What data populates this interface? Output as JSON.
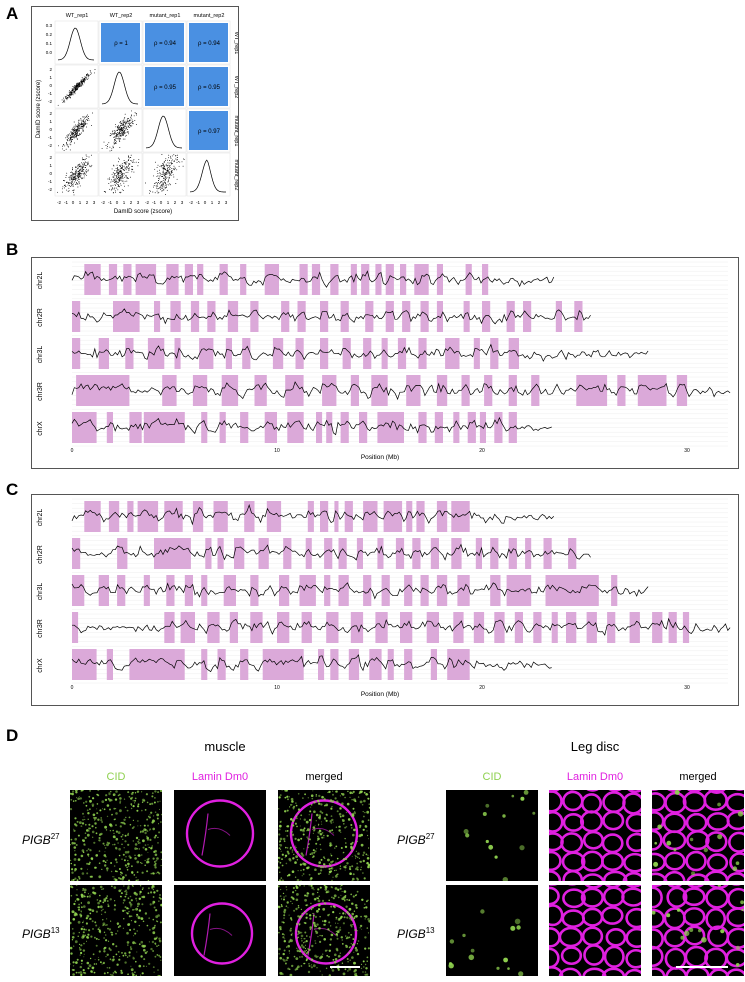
{
  "panels": {
    "A": "A",
    "B": "B",
    "C": "C",
    "D": "D"
  },
  "panelA": {
    "columns": [
      "WT_rep1",
      "WT_rep2",
      "mutant_rep1",
      "mutant_rep2"
    ],
    "rows": [
      "WT_rep1",
      "WT_rep2",
      "mutant_rep1",
      "mutant_rep2"
    ],
    "correlations": [
      {
        "label": "ρ = 1"
      },
      {
        "label": "ρ = 0.94"
      },
      {
        "label": "ρ = 0.94"
      },
      {
        "label": "ρ = 0.95"
      },
      {
        "label": "ρ = 0.95"
      },
      {
        "label": "ρ = 0.97"
      }
    ],
    "ylabel": "DamID score (zscore)",
    "xlabel": "DamID score (zscore)",
    "density_ticks": [
      "0.3",
      "0.2",
      "0.1",
      "0.0"
    ],
    "y_ticks": [
      "2",
      "1",
      "0",
      "-1",
      "-2"
    ],
    "x_ticks": [
      "-2",
      "-1",
      "0",
      "1",
      "2",
      "3"
    ],
    "tile_color": "#4a90e2"
  },
  "tracks": {
    "chromosomes": [
      "chr2L",
      "chr2R",
      "chr3L",
      "chr3R",
      "chrX"
    ],
    "xlabel": "Position (Mb)",
    "x_ticks": [
      "0",
      "10",
      "20",
      "30"
    ],
    "domain_color": "#dba9d9"
  },
  "chart_data": [
    {
      "type": "line",
      "panel": "B",
      "xlabel": "Position (Mb)",
      "xlim": [
        0,
        32
      ],
      "series": [
        {
          "name": "chr2L",
          "length_mb": 23.5,
          "domains": [
            [
              0.6,
              1.4
            ],
            [
              1.8,
              2.2
            ],
            [
              2.5,
              2.9
            ],
            [
              3.1,
              4.1
            ],
            [
              4.6,
              5.2
            ],
            [
              5.5,
              5.9
            ],
            [
              6.1,
              6.4
            ],
            [
              7.2,
              7.6
            ],
            [
              8.2,
              8.5
            ],
            [
              9.4,
              10.1
            ],
            [
              11.1,
              11.5
            ],
            [
              11.7,
              12.1
            ],
            [
              12.6,
              13.0
            ],
            [
              13.6,
              13.9
            ],
            [
              14.1,
              14.5
            ],
            [
              14.8,
              15.1
            ],
            [
              15.3,
              15.7
            ],
            [
              16.0,
              16.3
            ],
            [
              16.7,
              17.4
            ],
            [
              17.8,
              18.1
            ],
            [
              19.2,
              19.5
            ],
            [
              20.0,
              20.3
            ]
          ]
        },
        {
          "name": "chr2R",
          "length_mb": 25.3,
          "domains": [
            [
              0.0,
              0.4
            ],
            [
              2.0,
              3.3
            ],
            [
              4.0,
              4.3
            ],
            [
              4.8,
              5.3
            ],
            [
              5.8,
              6.2
            ],
            [
              6.6,
              7.0
            ],
            [
              7.6,
              8.1
            ],
            [
              8.7,
              9.1
            ],
            [
              10.2,
              10.6
            ],
            [
              11.0,
              11.4
            ],
            [
              12.1,
              12.5
            ],
            [
              13.1,
              13.5
            ],
            [
              14.3,
              14.7
            ],
            [
              15.3,
              15.7
            ],
            [
              16.1,
              16.5
            ],
            [
              17.0,
              17.4
            ],
            [
              17.8,
              18.1
            ],
            [
              19.1,
              19.4
            ],
            [
              20.0,
              20.4
            ],
            [
              21.2,
              21.6
            ],
            [
              22.0,
              22.4
            ],
            [
              23.6,
              23.9
            ],
            [
              24.5,
              24.9
            ]
          ]
        },
        {
          "name": "chr3L",
          "length_mb": 28.1,
          "domains": [
            [
              0.0,
              0.4
            ],
            [
              1.3,
              1.8
            ],
            [
              2.6,
              3.0
            ],
            [
              3.7,
              4.5
            ],
            [
              5.0,
              5.3
            ],
            [
              6.2,
              6.9
            ],
            [
              7.5,
              7.8
            ],
            [
              8.3,
              8.7
            ],
            [
              9.8,
              10.3
            ],
            [
              10.9,
              11.3
            ],
            [
              12.1,
              12.5
            ],
            [
              13.2,
              13.6
            ],
            [
              14.2,
              14.6
            ],
            [
              15.1,
              15.4
            ],
            [
              15.9,
              16.3
            ],
            [
              16.9,
              17.3
            ],
            [
              18.2,
              18.9
            ],
            [
              19.6,
              19.9
            ],
            [
              20.4,
              20.8
            ],
            [
              21.3,
              21.8
            ]
          ]
        },
        {
          "name": "chr3R",
          "length_mb": 32.1,
          "domains": [
            [
              0.2,
              2.8
            ],
            [
              4.4,
              5.1
            ],
            [
              5.9,
              6.6
            ],
            [
              7.3,
              8.1
            ],
            [
              8.9,
              9.5
            ],
            [
              10.4,
              11.3
            ],
            [
              12.2,
              12.9
            ],
            [
              13.6,
              14.0
            ],
            [
              14.6,
              15.4
            ],
            [
              16.3,
              17.0
            ],
            [
              17.8,
              18.3
            ],
            [
              19.0,
              19.4
            ],
            [
              20.1,
              20.5
            ],
            [
              21.3,
              21.7
            ],
            [
              22.4,
              22.8
            ],
            [
              24.6,
              26.1
            ],
            [
              26.6,
              27.0
            ],
            [
              27.6,
              29.0
            ],
            [
              29.5,
              30.0
            ]
          ]
        },
        {
          "name": "chrX",
          "length_mb": 23.4,
          "domains": [
            [
              0.0,
              1.2
            ],
            [
              1.7,
              2.0
            ],
            [
              2.8,
              3.4
            ],
            [
              3.5,
              5.5
            ],
            [
              6.3,
              6.6
            ],
            [
              7.2,
              7.5
            ],
            [
              8.2,
              8.6
            ],
            [
              9.4,
              10.0
            ],
            [
              10.5,
              11.3
            ],
            [
              11.9,
              12.2
            ],
            [
              12.4,
              12.7
            ],
            [
              13.1,
              13.5
            ],
            [
              14.0,
              14.4
            ],
            [
              14.9,
              16.2
            ],
            [
              16.9,
              17.3
            ],
            [
              17.7,
              18.1
            ],
            [
              18.6,
              18.9
            ],
            [
              19.3,
              19.7
            ],
            [
              19.9,
              20.2
            ],
            [
              20.6,
              21.0
            ],
            [
              21.3,
              21.7
            ]
          ]
        }
      ]
    },
    {
      "type": "line",
      "panel": "C",
      "xlabel": "Position (Mb)",
      "xlim": [
        0,
        32
      ],
      "series": [
        {
          "name": "chr2L",
          "length_mb": 23.5,
          "domains": [
            [
              0.6,
              1.4
            ],
            [
              1.8,
              2.3
            ],
            [
              2.7,
              3.0
            ],
            [
              3.2,
              4.2
            ],
            [
              4.5,
              5.4
            ],
            [
              5.9,
              6.4
            ],
            [
              6.9,
              7.6
            ],
            [
              8.4,
              8.9
            ],
            [
              9.5,
              10.2
            ],
            [
              11.5,
              11.8
            ],
            [
              12.1,
              12.5
            ],
            [
              12.8,
              13.0
            ],
            [
              13.3,
              13.7
            ],
            [
              14.2,
              14.9
            ],
            [
              15.2,
              16.1
            ],
            [
              16.3,
              16.6
            ],
            [
              16.8,
              17.2
            ],
            [
              17.8,
              18.3
            ],
            [
              18.5,
              19.4
            ]
          ]
        },
        {
          "name": "chr2R",
          "length_mb": 25.3,
          "domains": [
            [
              0.0,
              0.4
            ],
            [
              2.2,
              2.7
            ],
            [
              4.0,
              5.8
            ],
            [
              6.5,
              6.8
            ],
            [
              7.1,
              7.4
            ],
            [
              7.9,
              8.4
            ],
            [
              9.1,
              9.6
            ],
            [
              10.3,
              10.7
            ],
            [
              11.4,
              11.7
            ],
            [
              12.3,
              12.7
            ],
            [
              13.0,
              13.4
            ],
            [
              13.9,
              14.2
            ],
            [
              14.9,
              15.2
            ],
            [
              15.8,
              16.2
            ],
            [
              16.6,
              17.0
            ],
            [
              17.5,
              17.9
            ],
            [
              18.5,
              19.0
            ],
            [
              19.7,
              20.0
            ],
            [
              20.4,
              20.8
            ],
            [
              21.3,
              21.7
            ],
            [
              22.1,
              22.4
            ],
            [
              23.0,
              23.4
            ],
            [
              24.2,
              24.6
            ]
          ]
        },
        {
          "name": "chr3L",
          "length_mb": 28.1,
          "domains": [
            [
              0.0,
              0.6
            ],
            [
              1.3,
              1.8
            ],
            [
              2.2,
              2.6
            ],
            [
              3.5,
              3.8
            ],
            [
              4.6,
              5.0
            ],
            [
              5.5,
              5.9
            ],
            [
              6.3,
              6.6
            ],
            [
              7.4,
              8.0
            ],
            [
              8.7,
              9.1
            ],
            [
              10.1,
              10.6
            ],
            [
              11.1,
              11.9
            ],
            [
              12.3,
              12.6
            ],
            [
              13.0,
              13.5
            ],
            [
              14.2,
              14.6
            ],
            [
              15.1,
              15.5
            ],
            [
              16.2,
              16.6
            ],
            [
              17.0,
              17.4
            ],
            [
              17.8,
              18.3
            ],
            [
              18.8,
              19.4
            ],
            [
              20.4,
              20.9
            ],
            [
              21.2,
              22.4
            ],
            [
              23.1,
              25.7
            ],
            [
              26.3,
              26.6
            ]
          ]
        },
        {
          "name": "chr3R",
          "length_mb": 32.1,
          "domains": [
            [
              0.0,
              0.3
            ],
            [
              4.5,
              5.0
            ],
            [
              5.3,
              6.0
            ],
            [
              6.6,
              7.2
            ],
            [
              7.7,
              8.1
            ],
            [
              8.7,
              9.3
            ],
            [
              10.0,
              10.6
            ],
            [
              11.2,
              11.7
            ],
            [
              12.4,
              13.0
            ],
            [
              13.6,
              14.2
            ],
            [
              14.8,
              15.4
            ],
            [
              16.0,
              16.6
            ],
            [
              17.3,
              17.9
            ],
            [
              18.6,
              19.1
            ],
            [
              19.6,
              20.1
            ],
            [
              20.6,
              21.1
            ],
            [
              21.6,
              22.0
            ],
            [
              22.5,
              22.9
            ],
            [
              23.4,
              23.7
            ],
            [
              24.1,
              24.6
            ],
            [
              25.1,
              25.6
            ],
            [
              26.1,
              26.5
            ],
            [
              27.2,
              27.7
            ],
            [
              28.3,
              28.8
            ],
            [
              29.1,
              29.5
            ],
            [
              29.8,
              30.1
            ]
          ]
        },
        {
          "name": "chrX",
          "length_mb": 23.4,
          "domains": [
            [
              0.0,
              1.2
            ],
            [
              1.7,
              2.0
            ],
            [
              2.8,
              5.5
            ],
            [
              6.3,
              6.6
            ],
            [
              7.1,
              7.5
            ],
            [
              8.2,
              8.6
            ],
            [
              9.3,
              11.3
            ],
            [
              12.0,
              12.3
            ],
            [
              12.6,
              13.0
            ],
            [
              13.5,
              14.0
            ],
            [
              14.5,
              15.1
            ],
            [
              15.4,
              15.7
            ],
            [
              16.2,
              16.6
            ],
            [
              17.5,
              17.8
            ],
            [
              18.3,
              19.4
            ]
          ]
        }
      ]
    }
  ],
  "panelD": {
    "muscle_title": "muscle",
    "legdisc_title": "Leg disc",
    "channels": [
      "CID",
      "Lamin Dm0",
      "merged"
    ],
    "channel_colors": {
      "CID": "#8fd14f",
      "Lamin Dm0": "#e020e0",
      "merged": "#000000"
    },
    "rows": [
      {
        "gene": "PIGB",
        "allele": "27"
      },
      {
        "gene": "PIGB",
        "allele": "13"
      }
    ]
  }
}
